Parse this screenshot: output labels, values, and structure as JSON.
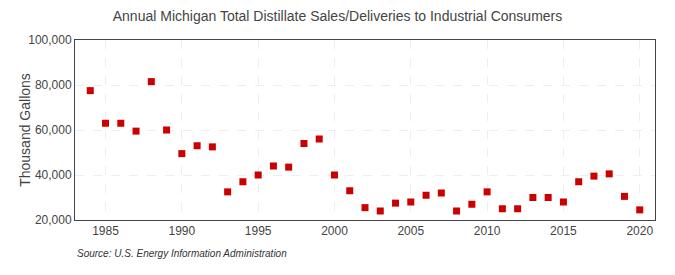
{
  "chart_data": {
    "type": "scatter",
    "title": "Annual Michigan Total Distillate Sales/Deliveries to Industrial Consumers",
    "ylabel": "Thousand Gallons",
    "annotations": [
      "Source: U.S. Energy Information Administration"
    ],
    "x": [
      1984,
      1985,
      1986,
      1987,
      1988,
      1989,
      1990,
      1991,
      1992,
      1993,
      1994,
      1995,
      1996,
      1997,
      1998,
      1999,
      2000,
      2001,
      2002,
      2003,
      2004,
      2005,
      2006,
      2007,
      2008,
      2009,
      2010,
      2011,
      2012,
      2013,
      2014,
      2015,
      2016,
      2017,
      2018,
      2019,
      2020
    ],
    "values": [
      77500,
      63000,
      63000,
      59500,
      81500,
      60000,
      49500,
      53000,
      52500,
      32500,
      37000,
      40000,
      44000,
      43500,
      54000,
      56000,
      40000,
      33000,
      25500,
      24000,
      27500,
      28000,
      31000,
      32000,
      24000,
      27000,
      32500,
      25000,
      25000,
      30000,
      30000,
      28000,
      37000,
      39500,
      40500,
      30500,
      24500
    ],
    "color": "#CC0000",
    "marker": "square",
    "xlim": [
      1983,
      2021
    ],
    "ylim": [
      20000,
      100000
    ],
    "xticks": [
      1985,
      1990,
      1995,
      2000,
      2005,
      2010,
      2015,
      2020
    ],
    "yticks": [
      {
        "value": 20000,
        "label": "20,000"
      },
      {
        "value": 40000,
        "label": "40,000"
      },
      {
        "value": 60000,
        "label": "60,000"
      },
      {
        "value": 80000,
        "label": "80,000"
      },
      {
        "value": 100000,
        "label": "100,000"
      }
    ],
    "grid": true
  }
}
